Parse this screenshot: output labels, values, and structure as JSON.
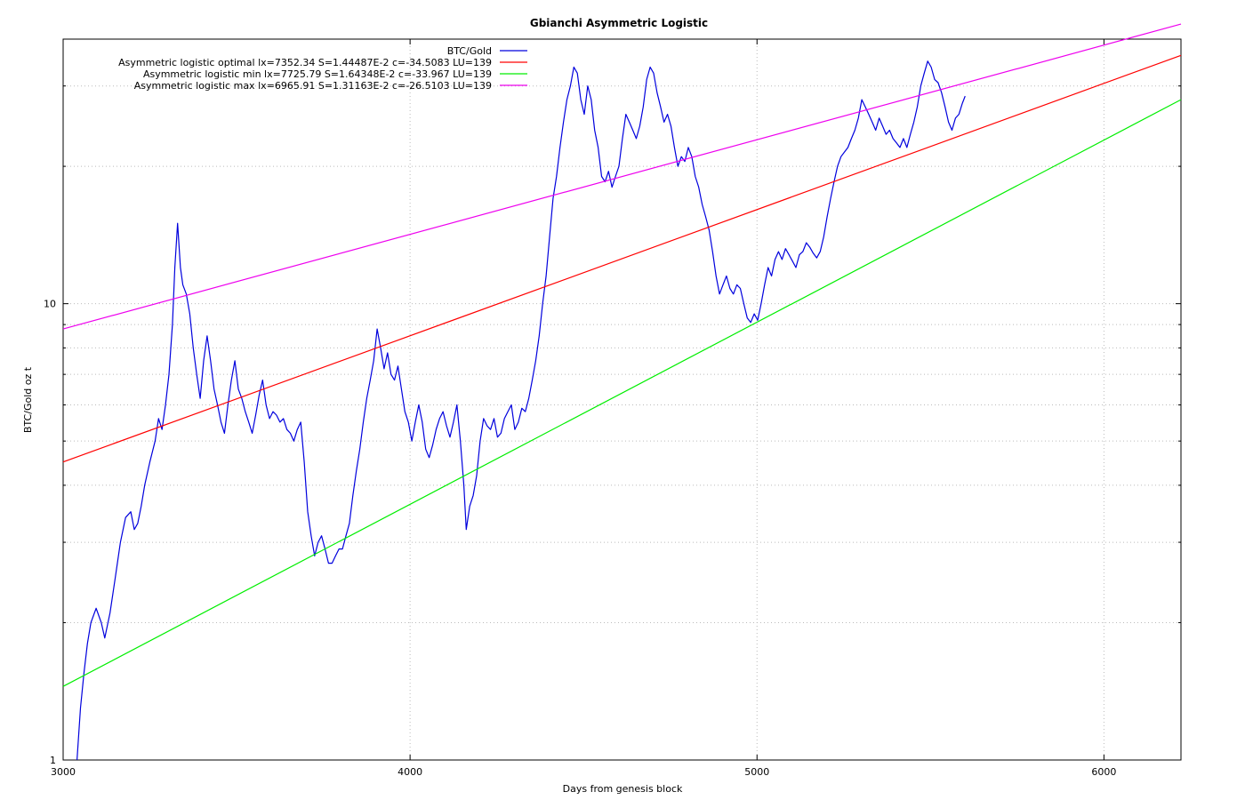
{
  "chart_data": {
    "type": "line",
    "title": "Gbianchi Asymmetric Logistic",
    "xlabel": "Days from genesis block",
    "ylabel": "BTC/Gold oz t",
    "y_scale": "log",
    "xlim": [
      3000,
      6222
    ],
    "ylim": [
      1,
      38
    ],
    "x_ticks": [
      3000,
      4000,
      5000,
      6000
    ],
    "y_ticks": [
      1,
      10
    ],
    "grid": true,
    "legend_position": "top-center",
    "series": [
      {
        "name": "BTC/Gold",
        "color": "#0000dd",
        "points": [
          [
            3040,
            1.0
          ],
          [
            3050,
            1.3
          ],
          [
            3060,
            1.55
          ],
          [
            3070,
            1.8
          ],
          [
            3080,
            2.0
          ],
          [
            3095,
            2.15
          ],
          [
            3110,
            2.0
          ],
          [
            3120,
            1.85
          ],
          [
            3135,
            2.1
          ],
          [
            3150,
            2.5
          ],
          [
            3165,
            3.0
          ],
          [
            3180,
            3.4
          ],
          [
            3195,
            3.5
          ],
          [
            3205,
            3.2
          ],
          [
            3215,
            3.3
          ],
          [
            3225,
            3.6
          ],
          [
            3235,
            4.0
          ],
          [
            3250,
            4.5
          ],
          [
            3265,
            5.0
          ],
          [
            3275,
            5.6
          ],
          [
            3285,
            5.3
          ],
          [
            3295,
            6.0
          ],
          [
            3305,
            7.0
          ],
          [
            3315,
            9.0
          ],
          [
            3322,
            12.0
          ],
          [
            3330,
            15.0
          ],
          [
            3338,
            12.0
          ],
          [
            3345,
            11.0
          ],
          [
            3355,
            10.5
          ],
          [
            3365,
            9.5
          ],
          [
            3375,
            8.0
          ],
          [
            3385,
            7.0
          ],
          [
            3395,
            6.2
          ],
          [
            3405,
            7.5
          ],
          [
            3415,
            8.5
          ],
          [
            3425,
            7.5
          ],
          [
            3435,
            6.5
          ],
          [
            3445,
            6.0
          ],
          [
            3455,
            5.5
          ],
          [
            3465,
            5.2
          ],
          [
            3475,
            6.0
          ],
          [
            3485,
            6.8
          ],
          [
            3495,
            7.5
          ],
          [
            3505,
            6.5
          ],
          [
            3515,
            6.2
          ],
          [
            3525,
            5.8
          ],
          [
            3535,
            5.5
          ],
          [
            3545,
            5.2
          ],
          [
            3555,
            5.7
          ],
          [
            3565,
            6.3
          ],
          [
            3575,
            6.8
          ],
          [
            3585,
            6.0
          ],
          [
            3595,
            5.6
          ],
          [
            3605,
            5.8
          ],
          [
            3615,
            5.7
          ],
          [
            3625,
            5.5
          ],
          [
            3635,
            5.6
          ],
          [
            3645,
            5.3
          ],
          [
            3655,
            5.2
          ],
          [
            3665,
            5.0
          ],
          [
            3675,
            5.3
          ],
          [
            3685,
            5.5
          ],
          [
            3695,
            4.5
          ],
          [
            3705,
            3.5
          ],
          [
            3715,
            3.1
          ],
          [
            3725,
            2.8
          ],
          [
            3735,
            3.0
          ],
          [
            3745,
            3.1
          ],
          [
            3755,
            2.9
          ],
          [
            3765,
            2.7
          ],
          [
            3775,
            2.7
          ],
          [
            3785,
            2.8
          ],
          [
            3795,
            2.9
          ],
          [
            3805,
            2.9
          ],
          [
            3815,
            3.1
          ],
          [
            3825,
            3.3
          ],
          [
            3835,
            3.8
          ],
          [
            3845,
            4.3
          ],
          [
            3855,
            4.8
          ],
          [
            3865,
            5.5
          ],
          [
            3875,
            6.2
          ],
          [
            3885,
            6.8
          ],
          [
            3895,
            7.5
          ],
          [
            3905,
            8.8
          ],
          [
            3915,
            8.0
          ],
          [
            3925,
            7.2
          ],
          [
            3935,
            7.8
          ],
          [
            3945,
            7.0
          ],
          [
            3955,
            6.8
          ],
          [
            3965,
            7.3
          ],
          [
            3975,
            6.5
          ],
          [
            3985,
            5.8
          ],
          [
            3995,
            5.5
          ],
          [
            4005,
            5.0
          ],
          [
            4015,
            5.5
          ],
          [
            4025,
            6.0
          ],
          [
            4035,
            5.5
          ],
          [
            4045,
            4.8
          ],
          [
            4055,
            4.6
          ],
          [
            4065,
            4.9
          ],
          [
            4075,
            5.3
          ],
          [
            4085,
            5.6
          ],
          [
            4095,
            5.8
          ],
          [
            4105,
            5.4
          ],
          [
            4115,
            5.1
          ],
          [
            4125,
            5.5
          ],
          [
            4135,
            6.0
          ],
          [
            4145,
            5.0
          ],
          [
            4155,
            4.0
          ],
          [
            4162,
            3.2
          ],
          [
            4172,
            3.6
          ],
          [
            4182,
            3.8
          ],
          [
            4192,
            4.2
          ],
          [
            4202,
            5.0
          ],
          [
            4212,
            5.6
          ],
          [
            4222,
            5.4
          ],
          [
            4232,
            5.3
          ],
          [
            4242,
            5.6
          ],
          [
            4252,
            5.1
          ],
          [
            4262,
            5.2
          ],
          [
            4272,
            5.6
          ],
          [
            4282,
            5.8
          ],
          [
            4292,
            6.0
          ],
          [
            4302,
            5.3
          ],
          [
            4312,
            5.5
          ],
          [
            4322,
            5.9
          ],
          [
            4332,
            5.8
          ],
          [
            4342,
            6.2
          ],
          [
            4352,
            6.8
          ],
          [
            4362,
            7.5
          ],
          [
            4372,
            8.5
          ],
          [
            4382,
            10.0
          ],
          [
            4392,
            11.5
          ],
          [
            4402,
            14.0
          ],
          [
            4412,
            17.0
          ],
          [
            4422,
            19.0
          ],
          [
            4432,
            22.0
          ],
          [
            4442,
            25.0
          ],
          [
            4452,
            28.0
          ],
          [
            4462,
            30.0
          ],
          [
            4472,
            33.0
          ],
          [
            4482,
            32.0
          ],
          [
            4492,
            28.0
          ],
          [
            4502,
            26.0
          ],
          [
            4512,
            30.0
          ],
          [
            4522,
            28.0
          ],
          [
            4532,
            24.0
          ],
          [
            4542,
            22.0
          ],
          [
            4552,
            19.0
          ],
          [
            4562,
            18.5
          ],
          [
            4572,
            19.5
          ],
          [
            4582,
            18.0
          ],
          [
            4592,
            19.0
          ],
          [
            4602,
            20.0
          ],
          [
            4612,
            23.0
          ],
          [
            4622,
            26.0
          ],
          [
            4632,
            25.0
          ],
          [
            4642,
            24.0
          ],
          [
            4652,
            23.0
          ],
          [
            4662,
            24.5
          ],
          [
            4672,
            27.0
          ],
          [
            4682,
            31.0
          ],
          [
            4692,
            33.0
          ],
          [
            4702,
            32.0
          ],
          [
            4712,
            29.0
          ],
          [
            4722,
            27.0
          ],
          [
            4732,
            25.0
          ],
          [
            4742,
            26.0
          ],
          [
            4752,
            24.5
          ],
          [
            4762,
            22.0
          ],
          [
            4772,
            20.0
          ],
          [
            4782,
            21.0
          ],
          [
            4792,
            20.5
          ],
          [
            4802,
            22.0
          ],
          [
            4812,
            21.0
          ],
          [
            4822,
            19.0
          ],
          [
            4832,
            18.0
          ],
          [
            4842,
            16.5
          ],
          [
            4852,
            15.5
          ],
          [
            4862,
            14.5
          ],
          [
            4872,
            13.0
          ],
          [
            4882,
            11.5
          ],
          [
            4892,
            10.5
          ],
          [
            4902,
            11.0
          ],
          [
            4912,
            11.5
          ],
          [
            4922,
            10.8
          ],
          [
            4932,
            10.5
          ],
          [
            4942,
            11.0
          ],
          [
            4952,
            10.8
          ],
          [
            4962,
            10.0
          ],
          [
            4972,
            9.3
          ],
          [
            4982,
            9.1
          ],
          [
            4992,
            9.5
          ],
          [
            5002,
            9.2
          ],
          [
            5012,
            10.0
          ],
          [
            5022,
            11.0
          ],
          [
            5032,
            12.0
          ],
          [
            5042,
            11.5
          ],
          [
            5052,
            12.5
          ],
          [
            5062,
            13.0
          ],
          [
            5072,
            12.5
          ],
          [
            5082,
            13.2
          ],
          [
            5092,
            12.8
          ],
          [
            5102,
            12.4
          ],
          [
            5112,
            12.0
          ],
          [
            5122,
            12.8
          ],
          [
            5132,
            13.0
          ],
          [
            5142,
            13.6
          ],
          [
            5152,
            13.3
          ],
          [
            5162,
            12.9
          ],
          [
            5172,
            12.6
          ],
          [
            5182,
            13.0
          ],
          [
            5192,
            14.0
          ],
          [
            5202,
            15.5
          ],
          [
            5212,
            17.0
          ],
          [
            5222,
            18.5
          ],
          [
            5232,
            20.0
          ],
          [
            5242,
            21.0
          ],
          [
            5252,
            21.5
          ],
          [
            5262,
            22.0
          ],
          [
            5272,
            23.0
          ],
          [
            5282,
            24.0
          ],
          [
            5292,
            25.5
          ],
          [
            5302,
            28.0
          ],
          [
            5312,
            27.0
          ],
          [
            5322,
            26.0
          ],
          [
            5332,
            25.0
          ],
          [
            5342,
            24.0
          ],
          [
            5352,
            25.5
          ],
          [
            5362,
            24.5
          ],
          [
            5372,
            23.5
          ],
          [
            5382,
            24.0
          ],
          [
            5392,
            23.0
          ],
          [
            5402,
            22.5
          ],
          [
            5412,
            22.0
          ],
          [
            5422,
            23.0
          ],
          [
            5432,
            22.0
          ],
          [
            5442,
            23.5
          ],
          [
            5452,
            25.0
          ],
          [
            5462,
            27.0
          ],
          [
            5472,
            30.0
          ],
          [
            5482,
            32.0
          ],
          [
            5492,
            34.0
          ],
          [
            5502,
            33.0
          ],
          [
            5512,
            31.0
          ],
          [
            5522,
            30.5
          ],
          [
            5532,
            29.0
          ],
          [
            5542,
            27.0
          ],
          [
            5552,
            25.0
          ],
          [
            5562,
            24.0
          ],
          [
            5572,
            25.5
          ],
          [
            5582,
            26.0
          ],
          [
            5592,
            27.5
          ],
          [
            5600,
            28.5
          ]
        ]
      },
      {
        "name": "Asymmetric logistic optimal lx=7352.34 S=1.44487E-2 c=-34.5083 LU=139",
        "color": "#ff0000",
        "points": [
          [
            3000,
            4.5
          ],
          [
            6222,
            35.0
          ]
        ]
      },
      {
        "name": "Asymmetric logistic min lx=7725.79 S=1.64348E-2 c=-33.967 LU=139",
        "color": "#00ee00",
        "points": [
          [
            3000,
            1.45
          ],
          [
            6222,
            28.0
          ]
        ]
      },
      {
        "name": "Asymmetric logistic max lx=6965.91 S=1.31163E-2 c=-26.5103 LU=139",
        "color": "#ee00ee",
        "points": [
          [
            3000,
            8.8
          ],
          [
            6222,
            41.0
          ]
        ]
      }
    ]
  }
}
